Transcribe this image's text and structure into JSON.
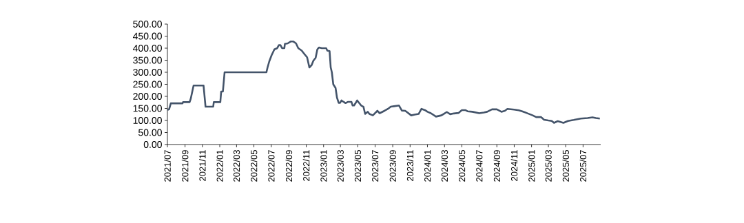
{
  "chart_data": {
    "type": "line",
    "color": "#44546a",
    "xlim": [
      "2021-07-01",
      "2025-09-01"
    ],
    "ylim": [
      0,
      500
    ],
    "yticks": [
      {
        "value": 0,
        "label": "0.00"
      },
      {
        "value": 50,
        "label": "50.00"
      },
      {
        "value": 100,
        "label": "100.00"
      },
      {
        "value": 150,
        "label": "150.00"
      },
      {
        "value": 200,
        "label": "200.00"
      },
      {
        "value": 250,
        "label": "250.00"
      },
      {
        "value": 300,
        "label": "300.00"
      },
      {
        "value": 350,
        "label": "350.00"
      },
      {
        "value": 400,
        "label": "400.00"
      },
      {
        "value": 450,
        "label": "450.00"
      },
      {
        "value": 500,
        "label": "500.00"
      }
    ],
    "xticks": [
      {
        "value": "2021-07-01",
        "label": "2021/07"
      },
      {
        "value": "2021-09-01",
        "label": "2021/09"
      },
      {
        "value": "2021-11-01",
        "label": "2021/11"
      },
      {
        "value": "2022-01-01",
        "label": "2022/01"
      },
      {
        "value": "2022-03-01",
        "label": "2022/03"
      },
      {
        "value": "2022-05-01",
        "label": "2022/05"
      },
      {
        "value": "2022-07-01",
        "label": "2022/07"
      },
      {
        "value": "2022-09-01",
        "label": "2022/09"
      },
      {
        "value": "2022-11-01",
        "label": "2022/11"
      },
      {
        "value": "2023-01-01",
        "label": "2023/01"
      },
      {
        "value": "2023-03-01",
        "label": "2023/03"
      },
      {
        "value": "2023-05-01",
        "label": "2023/05"
      },
      {
        "value": "2023-07-01",
        "label": "2023/07"
      },
      {
        "value": "2023-09-01",
        "label": "2023/09"
      },
      {
        "value": "2023-11-01",
        "label": "2023/11"
      },
      {
        "value": "2024-01-01",
        "label": "2024/01"
      },
      {
        "value": "2024-03-01",
        "label": "2024/03"
      },
      {
        "value": "2024-05-01",
        "label": "2024/05"
      },
      {
        "value": "2024-07-01",
        "label": "2024/07"
      },
      {
        "value": "2024-09-01",
        "label": "2024/09"
      },
      {
        "value": "2024-11-01",
        "label": "2024/11"
      },
      {
        "value": "2025-01-01",
        "label": "2025/01"
      },
      {
        "value": "2025-03-01",
        "label": "2025/03"
      },
      {
        "value": "2025-05-01",
        "label": "2025/05"
      },
      {
        "value": "2025-07-01",
        "label": "2025/07"
      }
    ],
    "x": [
      "2021-07-01",
      "2021-07-07",
      "2021-07-13",
      "2021-08-23",
      "2021-08-25",
      "2021-09-17",
      "2021-09-21",
      "2021-10-01",
      "2021-11-05",
      "2021-11-12",
      "2021-12-09",
      "2021-12-11",
      "2022-01-03",
      "2022-01-06",
      "2022-01-12",
      "2022-01-18",
      "2022-06-14",
      "2022-06-18",
      "2022-06-24",
      "2022-07-02",
      "2022-07-12",
      "2022-07-22",
      "2022-07-28",
      "2022-08-02",
      "2022-08-08",
      "2022-08-16",
      "2022-08-18",
      "2022-08-28",
      "2022-09-08",
      "2022-09-16",
      "2022-09-26",
      "2022-10-04",
      "2022-10-16",
      "2022-10-24",
      "2022-11-04",
      "2022-11-12",
      "2022-11-20",
      "2022-11-26",
      "2022-12-04",
      "2022-12-10",
      "2022-12-16",
      "2022-12-26",
      "2023-01-10",
      "2023-01-14",
      "2023-01-22",
      "2023-01-26",
      "2023-01-30",
      "2023-02-04",
      "2023-02-12",
      "2023-02-17",
      "2023-02-23",
      "2023-02-28",
      "2023-03-05",
      "2023-03-11",
      "2023-03-19",
      "2023-03-27",
      "2023-04-09",
      "2023-04-13",
      "2023-04-18",
      "2023-04-25",
      "2023-04-29",
      "2023-05-13",
      "2023-05-21",
      "2023-05-27",
      "2023-06-05",
      "2023-06-11",
      "2023-06-23",
      "2023-07-09",
      "2023-07-17",
      "2023-08-03",
      "2023-08-15",
      "2023-08-25",
      "2023-09-05",
      "2023-09-23",
      "2023-10-03",
      "2023-10-15",
      "2023-10-23",
      "2023-11-05",
      "2023-11-17",
      "2023-12-01",
      "2023-12-11",
      "2023-12-23",
      "2024-01-01",
      "2024-01-13",
      "2024-01-31",
      "2024-02-19",
      "2024-03-01",
      "2024-03-09",
      "2024-03-21",
      "2024-04-03",
      "2024-04-19",
      "2024-05-01",
      "2024-05-13",
      "2024-05-21",
      "2024-06-07",
      "2024-07-01",
      "2024-07-17",
      "2024-07-29",
      "2024-08-15",
      "2024-09-01",
      "2024-09-17",
      "2024-09-29",
      "2024-10-08",
      "2024-11-01",
      "2024-11-17",
      "2024-11-29",
      "2024-12-19",
      "2025-01-05",
      "2025-01-17",
      "2025-02-03",
      "2025-02-14",
      "2025-03-01",
      "2025-03-13",
      "2025-03-21",
      "2025-04-03",
      "2025-04-23",
      "2025-05-09",
      "2025-05-29",
      "2025-06-23",
      "2025-07-17",
      "2025-08-03",
      "2025-08-15",
      "2025-08-29"
    ],
    "values": [
      143,
      147,
      171,
      171,
      176,
      176,
      190,
      245,
      245,
      157,
      157,
      176,
      176,
      220,
      220,
      300,
      300,
      320,
      345,
      370,
      395,
      400,
      413,
      413,
      400,
      400,
      418,
      420,
      428,
      428,
      420,
      400,
      390,
      378,
      362,
      320,
      330,
      348,
      360,
      395,
      403,
      400,
      400,
      390,
      388,
      320,
      300,
      250,
      235,
      195,
      173,
      173,
      183,
      178,
      172,
      177,
      177,
      162,
      162,
      175,
      183,
      162,
      157,
      127,
      136,
      127,
      121,
      140,
      130,
      140,
      148,
      157,
      159,
      162,
      141,
      140,
      133,
      121,
      124,
      127,
      148,
      143,
      136,
      130,
      116,
      121,
      129,
      135,
      126,
      129,
      131,
      143,
      143,
      138,
      136,
      130,
      133,
      136,
      146,
      146,
      136,
      140,
      148,
      145,
      142,
      138,
      129,
      121,
      114,
      114,
      103,
      100,
      98,
      90,
      97,
      90,
      98,
      102,
      108,
      110,
      113,
      110,
      108
    ]
  }
}
